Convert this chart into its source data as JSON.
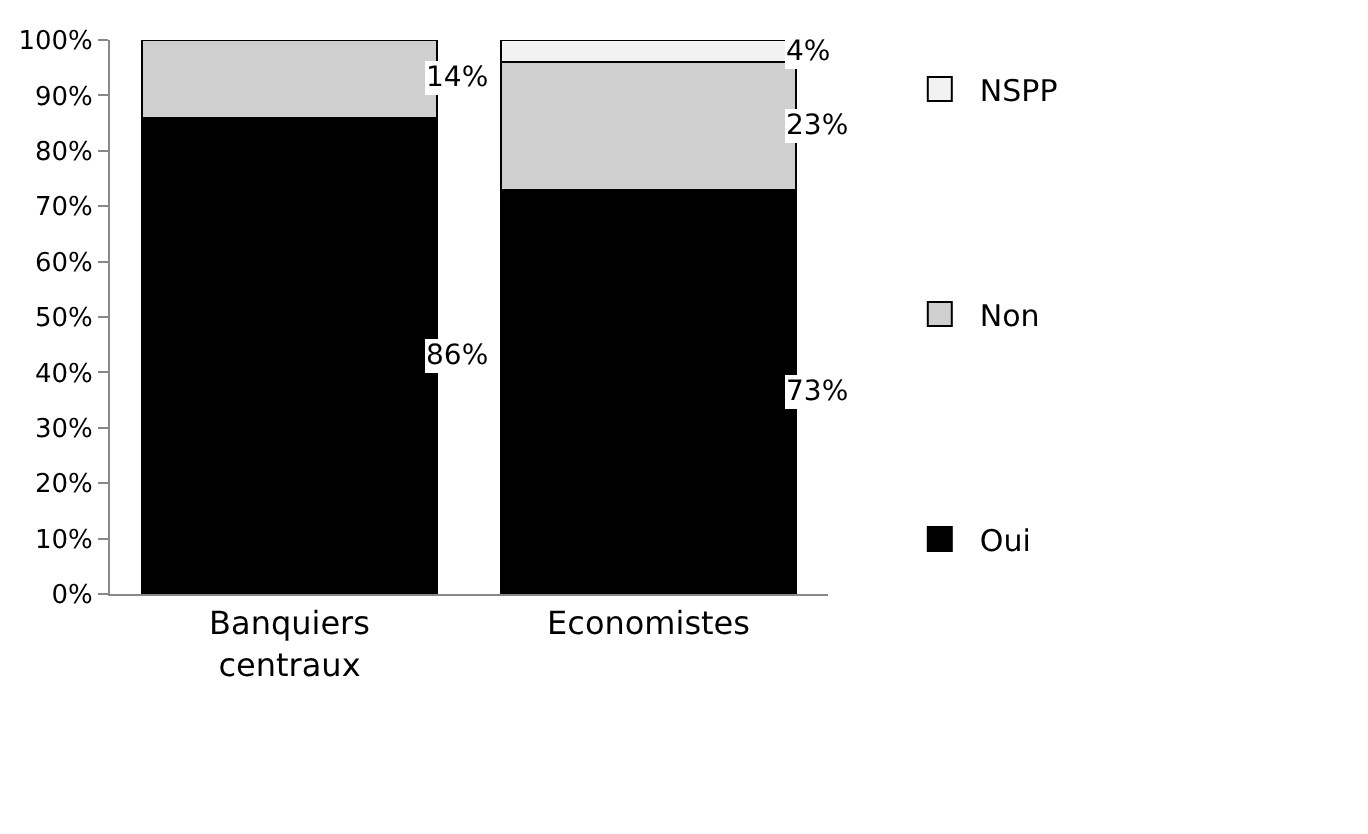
{
  "chart_data": {
    "type": "bar",
    "stacked": true,
    "categories": [
      "Banquiers centraux",
      "Economistes"
    ],
    "series": [
      {
        "name": "Oui",
        "color": "#000000",
        "values": [
          86,
          73
        ],
        "value_labels": [
          "86%",
          "73%"
        ]
      },
      {
        "name": "Non",
        "color": "#cfcfcf",
        "values": [
          14,
          23
        ],
        "value_labels": [
          "14%",
          "23%"
        ]
      },
      {
        "name": "NSPP",
        "color": "#f2f2f2",
        "values": [
          null,
          4
        ],
        "value_labels": [
          null,
          "4%"
        ]
      }
    ],
    "ylim": [
      0,
      100
    ],
    "yticks": [
      {
        "value": 0,
        "label": "0%"
      },
      {
        "value": 10,
        "label": "10%"
      },
      {
        "value": 20,
        "label": "20%"
      },
      {
        "value": 30,
        "label": "30%"
      },
      {
        "value": 40,
        "label": "40%"
      },
      {
        "value": 50,
        "label": "50%"
      },
      {
        "value": 60,
        "label": "60%"
      },
      {
        "value": 70,
        "label": "70%"
      },
      {
        "value": 80,
        "label": "80%"
      },
      {
        "value": 90,
        "label": "90%"
      },
      {
        "value": 100,
        "label": "100%"
      }
    ],
    "grid": false,
    "legend": "right"
  }
}
